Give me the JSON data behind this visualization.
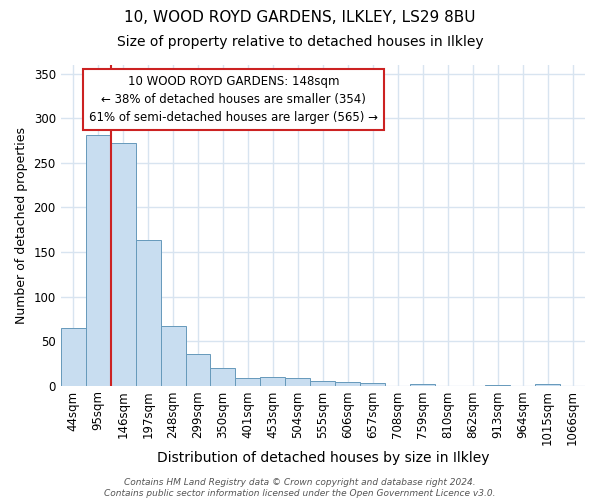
{
  "title_line1": "10, WOOD ROYD GARDENS, ILKLEY, LS29 8BU",
  "title_line2": "Size of property relative to detached houses in Ilkley",
  "xlabel": "Distribution of detached houses by size in Ilkley",
  "ylabel": "Number of detached properties",
  "categories": [
    "44sqm",
    "95sqm",
    "146sqm",
    "197sqm",
    "248sqm",
    "299sqm",
    "350sqm",
    "401sqm",
    "453sqm",
    "504sqm",
    "555sqm",
    "606sqm",
    "657sqm",
    "708sqm",
    "759sqm",
    "810sqm",
    "862sqm",
    "913sqm",
    "964sqm",
    "1015sqm",
    "1066sqm"
  ],
  "values": [
    65,
    281,
    272,
    163,
    67,
    35,
    20,
    8,
    10,
    9,
    5,
    4,
    3,
    0,
    2,
    0,
    0,
    1,
    0,
    2,
    0
  ],
  "bar_color": "#c8ddf0",
  "bar_edge_color": "#6699bb",
  "vline_x_index": 1.5,
  "annotation_text_line1": "10 WOOD ROYD GARDENS: 148sqm",
  "annotation_text_line2": "← 38% of detached houses are smaller (354)",
  "annotation_text_line3": "61% of semi-detached houses are larger (565) →",
  "annotation_box_color": "#ffffff",
  "annotation_box_edge_color": "#cc2222",
  "vline_color": "#cc2222",
  "ylim": [
    0,
    360
  ],
  "yticks": [
    0,
    50,
    100,
    150,
    200,
    250,
    300,
    350
  ],
  "footer_text": "Contains HM Land Registry data © Crown copyright and database right 2024.\nContains public sector information licensed under the Open Government Licence v3.0.",
  "background_color": "#ffffff",
  "plot_bg_color": "#ffffff",
  "grid_color": "#d8e4f0",
  "title_fontsize": 11,
  "subtitle_fontsize": 10,
  "xlabel_fontsize": 10,
  "ylabel_fontsize": 9,
  "tick_fontsize": 8.5
}
